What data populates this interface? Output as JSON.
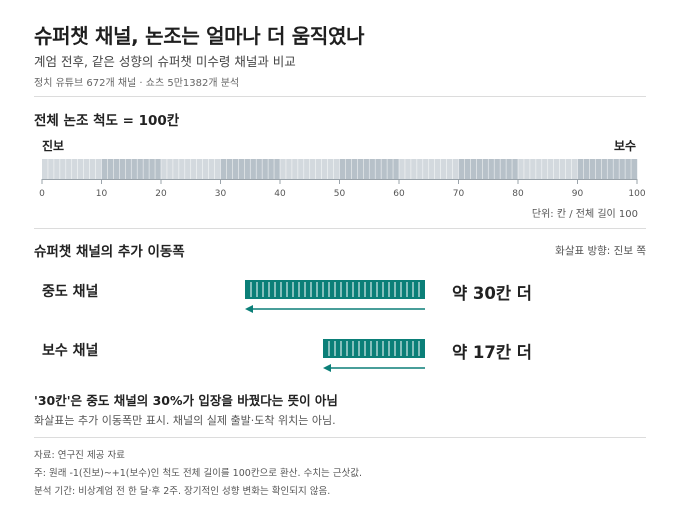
{
  "header": {
    "title": "슈퍼챗 채널, 논조는 얼마나 더 움직였나",
    "subtitle": "계엄 전후, 같은 성향의 슈퍼챗 미수령 채널과 비교",
    "meta": "정치 유튜브 672개 채널 · 쇼츠 5만1382개 분석"
  },
  "scale_section": {
    "title": "전체 논조 척도 = 100칸",
    "left_label": "진보",
    "right_label": "보수",
    "unit_note": "단위: 칸 / 전체 길이 100"
  },
  "shift_section": {
    "title": "슈퍼챗 채널의 추가 이동폭",
    "direction_note": "화살표 방향: 진보 쪽"
  },
  "note": {
    "title": "'30칸'은 중도 채널의 30%가 입장을 바꿨다는 뜻이 아님",
    "text": "화살표는 추가 이동폭만 표시. 채널의 실제 출발·도착 위치는 아님."
  },
  "footer": {
    "source": "자료: 연구진 제공 자료",
    "note1": "주: 원래 -1(진보)~+1(보수)인 척도 전체 길이를 100칸으로 환산. 수치는 근삿값.",
    "note2": "분석 기간: 비상계엄 전 한 달·후 2주. 장기적인 성향 변화는 확인되지 않음."
  },
  "colors": {
    "bar": "#0b7f78",
    "bar_divider": "#ffffff",
    "scale_light": "#d3d9de",
    "scale_dark": "#b7c1c9",
    "arrow": "#0b7f78"
  },
  "chart_data": [
    {
      "type": "bar",
      "title": "전체 논조 척도 = 100칸",
      "x": [
        0,
        10,
        20,
        30,
        40,
        50,
        60,
        70,
        80,
        90,
        100
      ],
      "tick_labels": [
        "0",
        "10",
        "20",
        "30",
        "40",
        "50",
        "60",
        "70",
        "80",
        "90",
        "100"
      ],
      "xlim": [
        0,
        100
      ],
      "total_cells": 100,
      "grid": false
    },
    {
      "type": "bar",
      "title": "슈퍼챗 채널의 추가 이동폭",
      "categories": [
        "중도 채널",
        "보수 채널"
      ],
      "values": [
        30,
        17
      ],
      "value_labels": [
        "약 30칸 더",
        "약 17칸 더"
      ],
      "direction": "진보",
      "xlim": [
        0,
        100
      ]
    }
  ]
}
